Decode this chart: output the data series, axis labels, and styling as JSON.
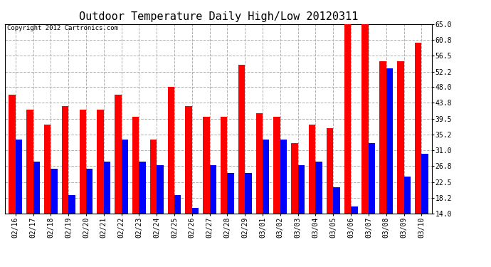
{
  "title": "Outdoor Temperature Daily High/Low 20120311",
  "copyright": "Copyright 2012 Cartronics.com",
  "dates": [
    "02/16",
    "02/17",
    "02/18",
    "02/19",
    "02/20",
    "02/21",
    "02/22",
    "02/23",
    "02/24",
    "02/25",
    "02/26",
    "02/27",
    "02/28",
    "02/29",
    "03/01",
    "03/02",
    "03/03",
    "03/04",
    "03/05",
    "03/06",
    "03/07",
    "03/08",
    "03/09",
    "03/10"
  ],
  "highs": [
    46.0,
    42.0,
    38.0,
    43.0,
    42.0,
    42.0,
    46.0,
    40.0,
    34.0,
    48.0,
    43.0,
    40.0,
    40.0,
    54.0,
    41.0,
    40.0,
    33.0,
    38.0,
    37.0,
    65.0,
    65.0,
    55.0,
    55.0,
    60.0
  ],
  "lows": [
    34.0,
    28.0,
    26.0,
    19.0,
    26.0,
    28.0,
    34.0,
    28.0,
    27.0,
    19.0,
    15.5,
    27.0,
    25.0,
    25.0,
    34.0,
    34.0,
    27.0,
    28.0,
    21.0,
    16.0,
    33.0,
    53.0,
    24.0,
    30.0
  ],
  "bar_color_high": "#ff0000",
  "bar_color_low": "#0000ff",
  "background_color": "#ffffff",
  "plot_bg_color": "#ffffff",
  "grid_color": "#b0b0b0",
  "ylim": [
    14.0,
    65.0
  ],
  "yticks": [
    14.0,
    18.2,
    22.5,
    26.8,
    31.0,
    35.2,
    39.5,
    43.8,
    48.0,
    52.2,
    56.5,
    60.8,
    65.0
  ],
  "bar_width": 0.38,
  "title_fontsize": 11,
  "tick_fontsize": 7,
  "copyright_fontsize": 6.5
}
